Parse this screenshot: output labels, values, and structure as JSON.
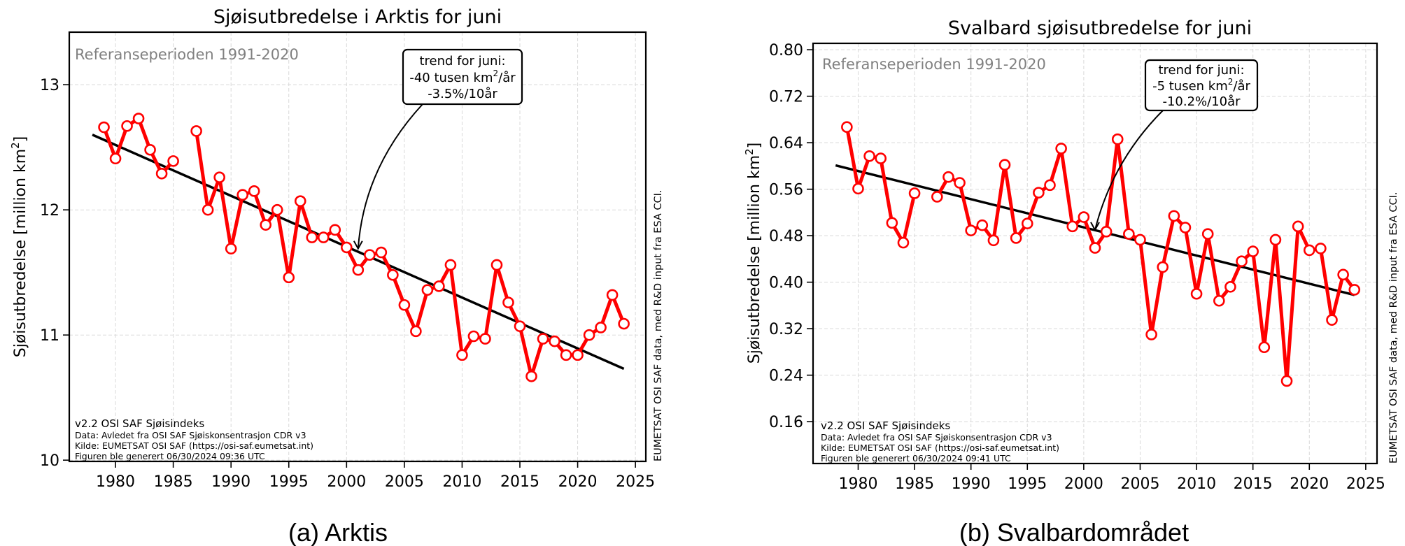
{
  "captions": [
    "(a) Arktis",
    "(b) Svalbardområdet"
  ],
  "colors": {
    "series": "#ff0000",
    "trend": "#000000",
    "reference_text": "#808080",
    "grid": "#d9d9d9"
  },
  "chart_data": [
    {
      "type": "line",
      "title": "Sjøisutbredelse i Arktis for juni",
      "xlabel": "",
      "ylabel": "Sjøisutbredelse [million km²]",
      "ylabel_main": "Sjøisutbredelse [million km",
      "ylabel_sup": "2",
      "ylabel_end": "]",
      "xlim": [
        1976.0,
        2025.9
      ],
      "ylim": [
        9.99,
        13.42
      ],
      "xticks": [
        1980,
        1985,
        1990,
        1995,
        2000,
        2005,
        2010,
        2015,
        2020,
        2025
      ],
      "xtick_labels": [
        "1980",
        "1985",
        "1990",
        "1995",
        "2000",
        "2005",
        "2010",
        "2015",
        "2020",
        "2025"
      ],
      "yticks": [
        10,
        11,
        12,
        13
      ],
      "ytick_labels": [
        "10",
        "11",
        "12",
        "13"
      ],
      "grid": true,
      "reference_text": "Referanseperioden 1991-2020",
      "annotation": {
        "line1": "trend for juni:",
        "line2_prefix": "-40 tusen km",
        "line2_sup": "2",
        "line2_suffix": "/år",
        "line3": "-3.5%/10år",
        "arrow_to": {
          "x": 2001,
          "y": 11.69
        }
      },
      "footer": {
        "line1": "v2.2 OSI SAF Sjøisindeks",
        "line2": "Data: Avledet fra OSI SAF Sjøiskonsentrasjon CDR v3",
        "line3": "Kilde: EUMETSAT OSI SAF (https://osi-saf.eumetsat.int)",
        "line4": "Figuren ble generert 06/30/2024 09:36 UTC"
      },
      "side_text": "EUMETSAT OSI SAF data, med R&D input fra ESA CCI.",
      "trend": {
        "x": [
          1978,
          2024
        ],
        "y": [
          12.6,
          10.73
        ]
      },
      "series": [
        {
          "name": "Juni sjøisutbredelse",
          "segments": [
            {
              "x": [
                1979,
                1980,
                1981,
                1982,
                1983,
                1984,
                1985
              ],
              "y": [
                12.66,
                12.41,
                12.67,
                12.73,
                12.48,
                12.29,
                12.39
              ]
            },
            {
              "x": [
                1987,
                1988,
                1989,
                1990,
                1991,
                1992,
                1993,
                1994,
                1995,
                1996,
                1997,
                1998,
                1999,
                2000,
                2001,
                2002,
                2003,
                2004,
                2005,
                2006,
                2007,
                2008,
                2009,
                2010,
                2011,
                2012,
                2013,
                2014,
                2015,
                2016,
                2017,
                2018,
                2019,
                2020,
                2021,
                2022,
                2023,
                2024
              ],
              "y": [
                12.63,
                12.0,
                12.26,
                11.69,
                12.12,
                12.15,
                11.88,
                12.0,
                11.46,
                12.07,
                11.78,
                11.78,
                11.84,
                11.7,
                11.52,
                11.64,
                11.66,
                11.48,
                11.24,
                11.03,
                11.36,
                11.39,
                11.56,
                10.84,
                10.99,
                10.97,
                11.56,
                11.26,
                11.07,
                10.67,
                10.97,
                10.95,
                10.84,
                10.84,
                11.0,
                11.06,
                11.32,
                11.09
              ]
            }
          ]
        }
      ]
    },
    {
      "type": "line",
      "title": "Svalbard sjøisutbredelse for juni",
      "xlabel": "",
      "ylabel": "Sjøisutbredelse [million km²]",
      "ylabel_main": "Sjøisutbredelse [million km",
      "ylabel_sup": "2",
      "ylabel_end": "]",
      "xlim": [
        1976.0,
        2026.0
      ],
      "ylim": [
        0.088,
        0.811
      ],
      "xticks": [
        1980,
        1985,
        1990,
        1995,
        2000,
        2005,
        2010,
        2015,
        2020,
        2025
      ],
      "xtick_labels": [
        "1980",
        "1985",
        "1990",
        "1995",
        "2000",
        "2005",
        "2010",
        "2015",
        "2020",
        "2025"
      ],
      "yticks": [
        0.16,
        0.24,
        0.32,
        0.4,
        0.48,
        0.56,
        0.64,
        0.72,
        0.8
      ],
      "ytick_labels": [
        "0.16",
        "0.24",
        "0.32",
        "0.40",
        "0.48",
        "0.56",
        "0.64",
        "0.72",
        "0.80"
      ],
      "grid": true,
      "reference_text": "Referanseperioden 1991-2020",
      "annotation": {
        "line1": "trend for juni:",
        "line2_prefix": "-5 tusen km",
        "line2_sup": "2",
        "line2_suffix": "/år",
        "line3": "-10.2%/10år",
        "arrow_to": {
          "x": 2001,
          "y": 0.49
        }
      },
      "footer": {
        "line1": "v2.2 OSI SAF Sjøisindeks",
        "line2": "Data: Avledet fra OSI SAF Sjøiskonsentrasjon CDR v3",
        "line3": "Kilde: EUMETSAT OSI SAF (https://osi-saf.eumetsat.int)",
        "line4": "Figuren ble generert 06/30/2024 09:41 UTC"
      },
      "side_text": "EUMETSAT OSI SAF data, med R&D input fra ESA CCI.",
      "trend": {
        "x": [
          1978,
          2024
        ],
        "y": [
          0.601,
          0.378
        ]
      },
      "series": [
        {
          "name": "Juni sjøisutbredelse",
          "segments": [
            {
              "x": [
                1979,
                1980,
                1981,
                1982,
                1983,
                1984,
                1985
              ],
              "y": [
                0.667,
                0.561,
                0.617,
                0.613,
                0.502,
                0.468,
                0.553
              ]
            },
            {
              "x": [
                1987,
                1988,
                1989,
                1990,
                1991,
                1992,
                1993,
                1994,
                1995,
                1996,
                1997,
                1998,
                1999,
                2000,
                2001,
                2002,
                2003,
                2004,
                2005,
                2006,
                2007,
                2008,
                2009,
                2010,
                2011,
                2012,
                2013,
                2014,
                2015,
                2016,
                2017,
                2018,
                2019,
                2020,
                2021,
                2022,
                2023,
                2024
              ],
              "y": [
                0.547,
                0.581,
                0.571,
                0.489,
                0.498,
                0.472,
                0.602,
                0.476,
                0.501,
                0.554,
                0.567,
                0.63,
                0.496,
                0.512,
                0.459,
                0.487,
                0.646,
                0.483,
                0.473,
                0.31,
                0.426,
                0.514,
                0.494,
                0.38,
                0.483,
                0.368,
                0.392,
                0.436,
                0.453,
                0.288,
                0.473,
                0.23,
                0.496,
                0.455,
                0.458,
                0.335,
                0.413,
                0.387
              ]
            }
          ]
        }
      ]
    }
  ]
}
